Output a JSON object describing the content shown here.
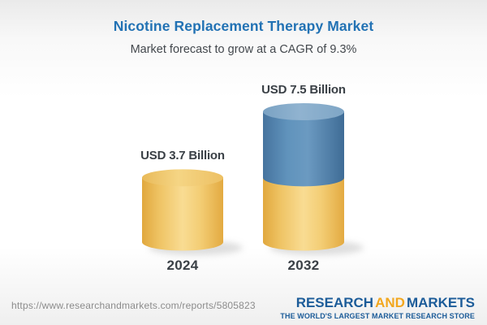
{
  "header": {
    "title": "Nicotine Replacement Therapy Market",
    "subtitle": "Market forecast to grow at a CAGR of 9.3%"
  },
  "chart_data": {
    "type": "bar",
    "style": "3d-cylinder",
    "categories": [
      "2024",
      "2032"
    ],
    "values": [
      3.7,
      7.5
    ],
    "unit": "USD Billion",
    "value_labels": [
      "USD 3.7 Billion",
      "USD 7.5 Billion"
    ],
    "title": "Nicotine Replacement Therapy Market",
    "subtitle": "Market forecast to grow at a CAGR of 9.3%",
    "cagr_percent": 9.3,
    "legend": "none",
    "axes": "none",
    "colors": {
      "base_segment_gold": "#F3CC74",
      "growth_segment_blue": "#5D8DB7"
    }
  },
  "footer": {
    "url": "https://www.researchandmarkets.com/reports/5805823",
    "logo": {
      "word1": "RESEARCH",
      "word2": "AND",
      "word3": "MARKETS",
      "tagline": "THE WORLD'S LARGEST MARKET RESEARCH STORE",
      "blue": "#1C5C99",
      "orange": "#F2A71F"
    }
  },
  "accent_colors": {
    "title_blue": "#2272B4",
    "text_dark": "#3A4046",
    "url_gray": "#8C8C8C"
  }
}
